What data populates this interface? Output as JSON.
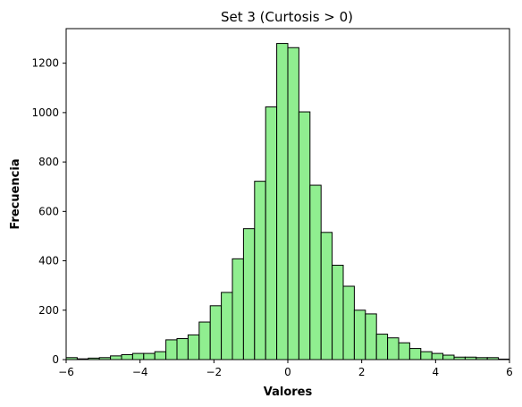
{
  "chart_data": {
    "type": "bar",
    "title": "Set 3 (Curtosis > 0)",
    "xlabel": "Valores",
    "ylabel": "Frecuencia",
    "xlim": [
      -6,
      6
    ],
    "ylim": [
      0,
      1340
    ],
    "x_ticks": [
      -6,
      -4,
      -2,
      0,
      2,
      4,
      6
    ],
    "x_tick_labels": [
      "−6",
      "−4",
      "−2",
      "0",
      "2",
      "4",
      "6"
    ],
    "y_ticks": [
      0,
      200,
      400,
      600,
      800,
      1000,
      1200
    ],
    "y_tick_labels": [
      "0",
      "200",
      "400",
      "600",
      "800",
      "1000",
      "1200"
    ],
    "grid": false,
    "bar_color": "#90ee90",
    "edge_color": "#000000",
    "bins": [
      {
        "x0": -6.0,
        "x1": -5.7,
        "value": 8
      },
      {
        "x0": -5.7,
        "x1": -5.4,
        "value": 3
      },
      {
        "x0": -5.4,
        "x1": -5.1,
        "value": 6
      },
      {
        "x0": -5.1,
        "x1": -4.8,
        "value": 8
      },
      {
        "x0": -4.8,
        "x1": -4.5,
        "value": 15
      },
      {
        "x0": -4.5,
        "x1": -4.2,
        "value": 20
      },
      {
        "x0": -4.2,
        "x1": -3.9,
        "value": 25
      },
      {
        "x0": -3.9,
        "x1": -3.6,
        "value": 25
      },
      {
        "x0": -3.6,
        "x1": -3.3,
        "value": 32
      },
      {
        "x0": -3.3,
        "x1": -3.0,
        "value": 80
      },
      {
        "x0": -3.0,
        "x1": -2.7,
        "value": 85
      },
      {
        "x0": -2.7,
        "x1": -2.4,
        "value": 100
      },
      {
        "x0": -2.4,
        "x1": -2.1,
        "value": 152
      },
      {
        "x0": -2.1,
        "x1": -1.8,
        "value": 218
      },
      {
        "x0": -1.8,
        "x1": -1.5,
        "value": 272
      },
      {
        "x0": -1.5,
        "x1": -1.2,
        "value": 408
      },
      {
        "x0": -1.2,
        "x1": -0.9,
        "value": 530
      },
      {
        "x0": -0.9,
        "x1": -0.6,
        "value": 722
      },
      {
        "x0": -0.6,
        "x1": -0.3,
        "value": 1023
      },
      {
        "x0": -0.3,
        "x1": 0.0,
        "value": 1280
      },
      {
        "x0": 0.0,
        "x1": 0.3,
        "value": 1263
      },
      {
        "x0": 0.3,
        "x1": 0.6,
        "value": 1003
      },
      {
        "x0": 0.6,
        "x1": 0.9,
        "value": 706
      },
      {
        "x0": 0.9,
        "x1": 1.2,
        "value": 515
      },
      {
        "x0": 1.2,
        "x1": 1.5,
        "value": 382
      },
      {
        "x0": 1.5,
        "x1": 1.8,
        "value": 297
      },
      {
        "x0": 1.8,
        "x1": 2.1,
        "value": 200
      },
      {
        "x0": 2.1,
        "x1": 2.4,
        "value": 185
      },
      {
        "x0": 2.4,
        "x1": 2.7,
        "value": 103
      },
      {
        "x0": 2.7,
        "x1": 3.0,
        "value": 88
      },
      {
        "x0": 3.0,
        "x1": 3.3,
        "value": 68
      },
      {
        "x0": 3.3,
        "x1": 3.6,
        "value": 45
      },
      {
        "x0": 3.6,
        "x1": 3.9,
        "value": 32
      },
      {
        "x0": 3.9,
        "x1": 4.2,
        "value": 25
      },
      {
        "x0": 4.2,
        "x1": 4.5,
        "value": 18
      },
      {
        "x0": 4.5,
        "x1": 4.8,
        "value": 10
      },
      {
        "x0": 4.8,
        "x1": 5.1,
        "value": 10
      },
      {
        "x0": 5.1,
        "x1": 5.4,
        "value": 8
      },
      {
        "x0": 5.4,
        "x1": 5.7,
        "value": 8
      },
      {
        "x0": 5.7,
        "x1": 6.0,
        "value": 2
      }
    ]
  }
}
